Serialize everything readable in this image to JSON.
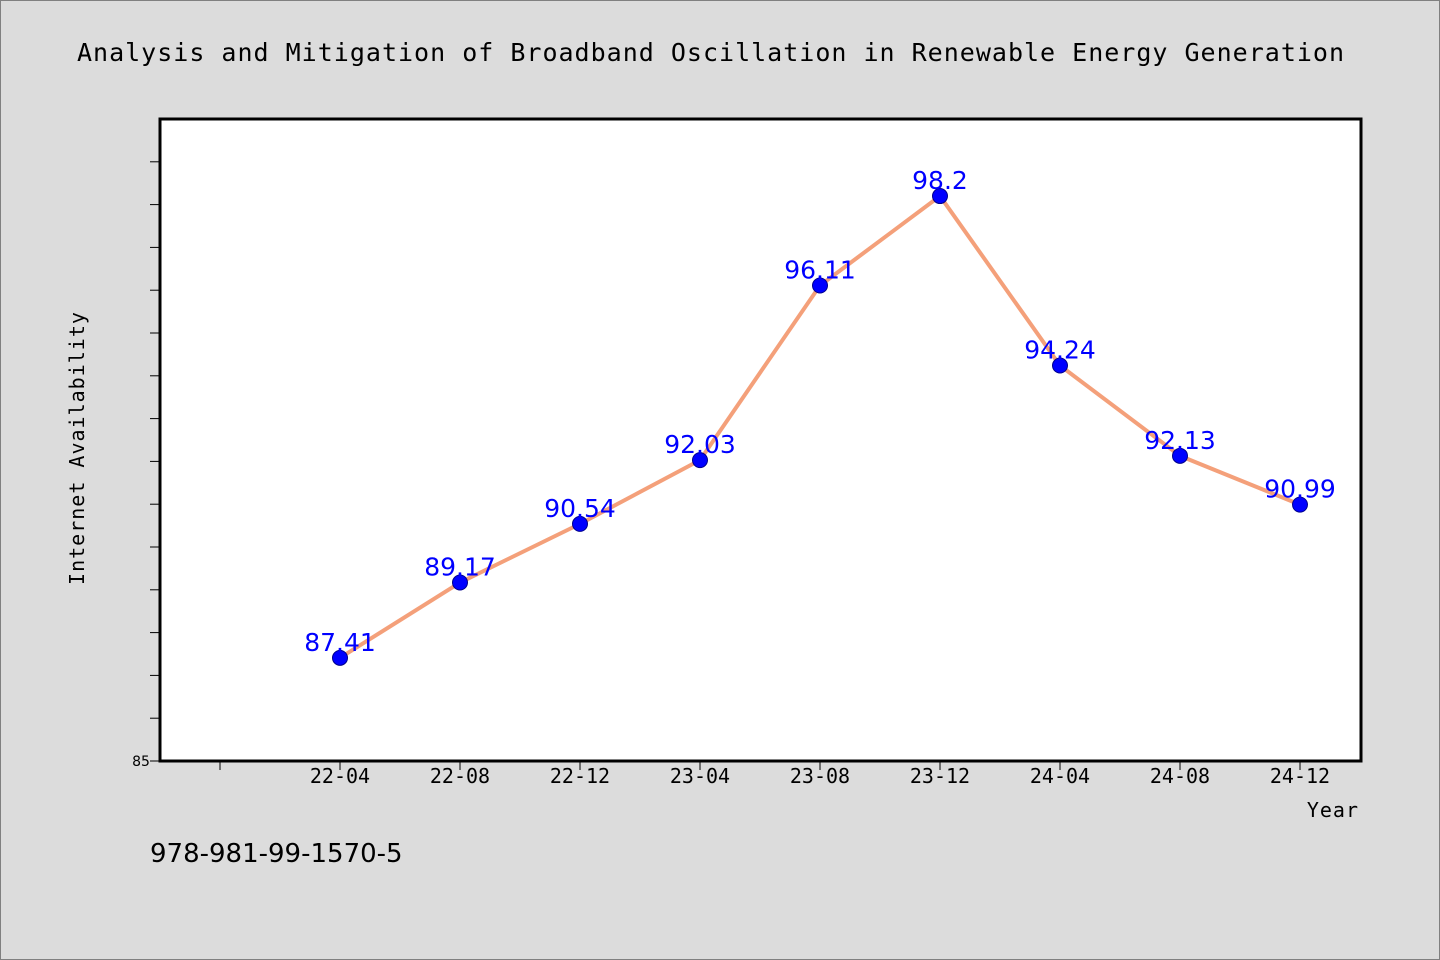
{
  "chart_data": {
    "type": "line",
    "title": "Analysis and Mitigation of Broadband Oscillation in Renewable Energy Generation",
    "xlabel": "Year",
    "ylabel": "Internet Availability",
    "categories": [
      "22-04",
      "22-08",
      "22-12",
      "23-04",
      "23-08",
      "23-12",
      "24-04",
      "24-08",
      "24-12"
    ],
    "series": [
      {
        "values": [
          87.41,
          89.17,
          90.54,
          92.03,
          96.11,
          98.2,
          94.24,
          92.13,
          90.99
        ],
        "labels": [
          "87.41",
          "89.17",
          "90.54",
          "92.03",
          "96.11",
          "98.2",
          "94.24",
          "92.13",
          "90.99"
        ]
      }
    ],
    "ylim": [
      85,
      100
    ],
    "ytick_labels": [
      "85"
    ],
    "grid": false,
    "line_color": "#f4a07a",
    "marker_color": "#0000ff",
    "label_color": "#0000ff"
  },
  "footer": {
    "isbn": "978-981-99-1570-5"
  }
}
